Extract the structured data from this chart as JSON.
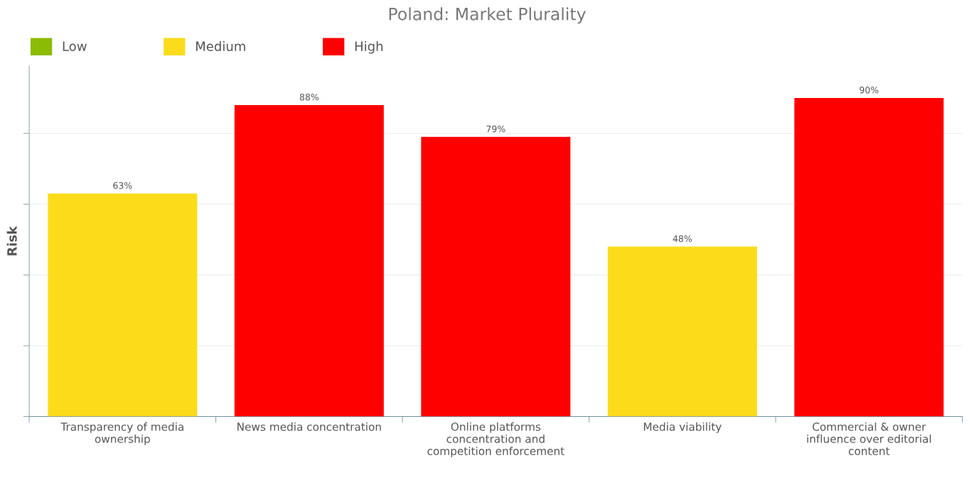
{
  "chart_data": {
    "type": "bar",
    "title": "Poland: Market Plurality",
    "ylabel": "Risk",
    "categories": [
      "Transparency of media\nownership",
      "News media concentration",
      "Online platforms\nconcentration and\ncompetition enforcement",
      "Media viability",
      "Commercial & owner\ninfluence over editorial\ncontent"
    ],
    "series": [
      {
        "name": "Low",
        "color": "#8cbb04",
        "values": [
          null,
          null,
          null,
          null,
          null
        ]
      },
      {
        "name": "Medium",
        "color": "#fcdb1b",
        "values": [
          63,
          null,
          null,
          48,
          null
        ],
        "value_labels": [
          "63%",
          null,
          null,
          "48%",
          null
        ]
      },
      {
        "name": "High",
        "color": "#ff0000",
        "values": [
          null,
          88,
          79,
          null,
          90
        ],
        "value_labels": [
          null,
          "88%",
          "79%",
          null,
          "90%"
        ]
      }
    ],
    "stacked": true,
    "tick_labels": "x",
    "grid": "y",
    "legend": "top left"
  }
}
